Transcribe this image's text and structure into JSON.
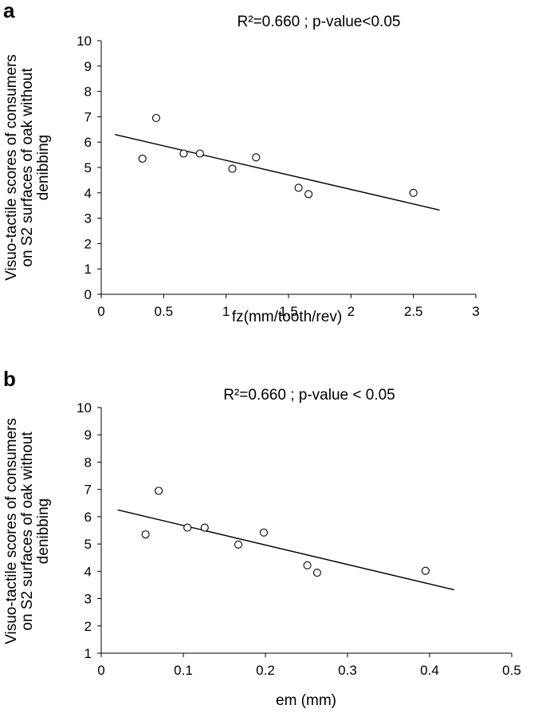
{
  "chart_data": [
    {
      "panel": "a",
      "type": "scatter",
      "title": "R²=0.660 ; p-value<0.05",
      "xlabel": "fz(mm/tooth/rev)",
      "ylabel_lines": [
        "Visuo-tactile scores of consumers",
        "on S2 surfaces of oak without",
        "denibbing"
      ],
      "xlim": [
        0,
        3
      ],
      "ylim": [
        0,
        10
      ],
      "xticks": [
        0,
        0.5,
        1,
        1.5,
        2,
        2.5,
        3
      ],
      "xtick_labels": [
        "0",
        "0.5",
        "1",
        "1.5",
        "2",
        "2.5",
        "3"
      ],
      "yticks": [
        0,
        1,
        2,
        3,
        4,
        5,
        6,
        7,
        8,
        9,
        10
      ],
      "ytick_labels": [
        "0",
        "1",
        "2",
        "3",
        "4",
        "5",
        "6",
        "7",
        "8",
        "9",
        "10"
      ],
      "points": [
        {
          "x": 0.33,
          "y": 5.35
        },
        {
          "x": 0.44,
          "y": 6.95
        },
        {
          "x": 0.66,
          "y": 5.55
        },
        {
          "x": 0.79,
          "y": 5.55
        },
        {
          "x": 1.05,
          "y": 4.95
        },
        {
          "x": 1.24,
          "y": 5.4
        },
        {
          "x": 1.58,
          "y": 4.2
        },
        {
          "x": 1.66,
          "y": 3.95
        },
        {
          "x": 2.5,
          "y": 4.0
        }
      ],
      "trendline": {
        "x": [
          0.11,
          2.71
        ],
        "y": [
          6.3,
          3.32
        ]
      }
    },
    {
      "panel": "b",
      "type": "scatter",
      "title": "R²=0.660 ; p-value < 0.05",
      "xlabel": "em (mm)",
      "ylabel_lines": [
        "Visuo-tactile scores of consumers",
        "on S2 surfaces of oak without",
        "denibbing"
      ],
      "xlim": [
        0,
        0.5
      ],
      "ylim": [
        1,
        10
      ],
      "xticks": [
        0,
        0.1,
        0.2,
        0.3,
        0.4,
        0.5
      ],
      "xtick_labels": [
        "0",
        "0.1",
        "0.2",
        "0.3",
        "0.4",
        "0.5"
      ],
      "yticks": [
        1,
        2,
        3,
        4,
        5,
        6,
        7,
        8,
        9,
        10
      ],
      "ytick_labels": [
        "1",
        "2",
        "3",
        "4",
        "5",
        "6",
        "7",
        "8",
        "9",
        "10"
      ],
      "points": [
        {
          "x": 0.054,
          "y": 5.35
        },
        {
          "x": 0.07,
          "y": 6.95
        },
        {
          "x": 0.105,
          "y": 5.6
        },
        {
          "x": 0.126,
          "y": 5.6
        },
        {
          "x": 0.167,
          "y": 4.98
        },
        {
          "x": 0.198,
          "y": 5.42
        },
        {
          "x": 0.251,
          "y": 4.22
        },
        {
          "x": 0.263,
          "y": 3.95
        },
        {
          "x": 0.395,
          "y": 4.02
        }
      ],
      "trendline": {
        "x": [
          0.02,
          0.43
        ],
        "y": [
          6.25,
          3.32
        ]
      }
    }
  ]
}
